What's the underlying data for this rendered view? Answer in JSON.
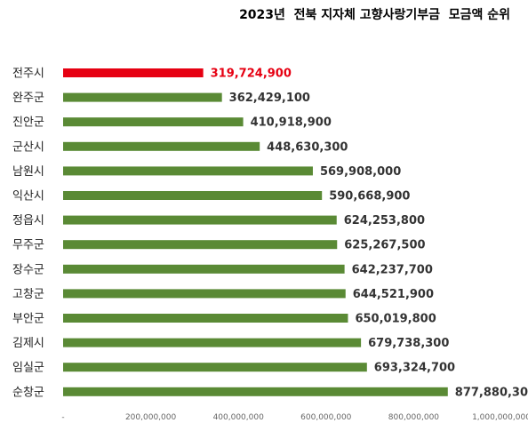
{
  "chart_data": {
    "type": "bar",
    "orientation": "horizontal",
    "title": "2023년  전북 지자체 고향사랑기부금  모금액 순위",
    "categories": [
      "전주시",
      "완주군",
      "진안군",
      "군산시",
      "남원시",
      "익산시",
      "정읍시",
      "무주군",
      "장수군",
      "고창군",
      "부안군",
      "김제시",
      "임실군",
      "순창군"
    ],
    "values": [
      319724900,
      362429100,
      410918900,
      448630300,
      569908000,
      590668900,
      624253800,
      625267500,
      642237700,
      644521900,
      650019800,
      679738300,
      693324700,
      877880300
    ],
    "value_labels": [
      "319,724,900",
      "362,429,100",
      "410,918,900",
      "448,630,300",
      "569,908,000",
      "590,668,900",
      "624,253,800",
      "625,267,500",
      "642,237,700",
      "644,521,900",
      "650,019,800",
      "679,738,300",
      "693,324,700",
      "877,880,300"
    ],
    "xlim": [
      0,
      1000000000
    ],
    "x_ticks": [
      0,
      200000000,
      400000000,
      600000000,
      800000000,
      1000000000
    ],
    "x_tick_labels": [
      "-",
      "200,000,000",
      "400,000,000",
      "600,000,000",
      "800,000,000",
      "1,000,000,000"
    ],
    "grid": false,
    "legend": "none",
    "highlight_index": 0,
    "colors": {
      "bar": "#5a8a35",
      "highlight": "#e60012",
      "highlight_label": "#e60012"
    }
  }
}
